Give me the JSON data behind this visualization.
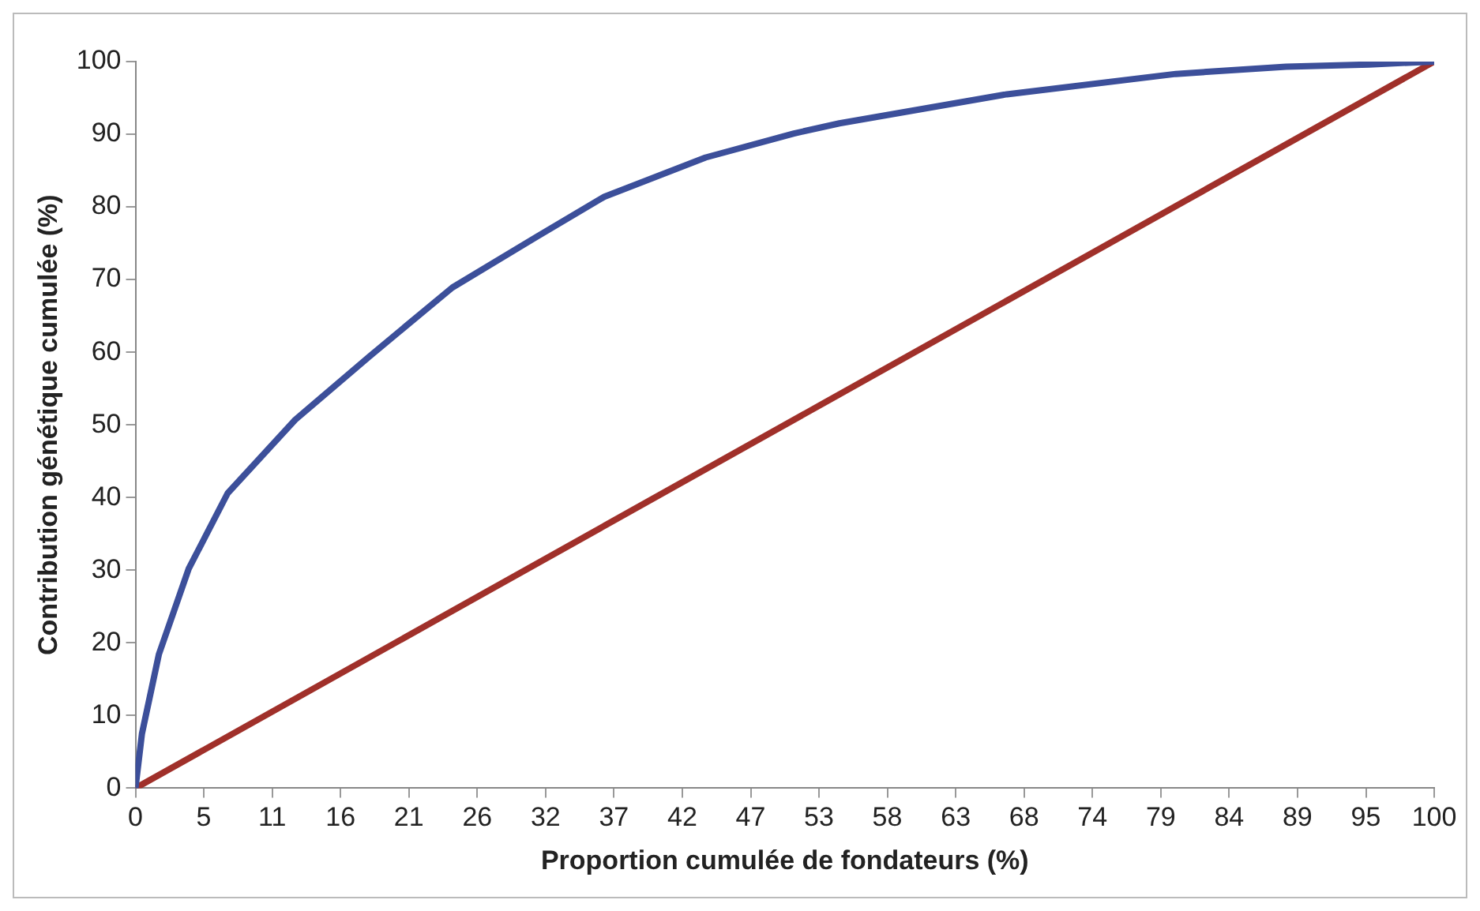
{
  "chart_data": {
    "type": "line",
    "xlabel": "Proportion cumulée de fondateurs (%)",
    "ylabel": "Contribution génétique cumulée (%)",
    "xlim": [
      0,
      100
    ],
    "ylim": [
      0,
      100
    ],
    "xticks": [
      0,
      {
        "value": 5.26,
        "label": "5"
      },
      {
        "value": 10.53,
        "label": "11"
      },
      {
        "value": 15.79,
        "label": "16"
      },
      {
        "value": 21.05,
        "label": "21"
      },
      {
        "value": 26.32,
        "label": "26"
      },
      {
        "value": 31.58,
        "label": "32"
      },
      {
        "value": 36.84,
        "label": "37"
      },
      {
        "value": 42.11,
        "label": "42"
      },
      {
        "value": 47.37,
        "label": "47"
      },
      {
        "value": 52.63,
        "label": "53"
      },
      {
        "value": 57.89,
        "label": "58"
      },
      {
        "value": 63.16,
        "label": "63"
      },
      {
        "value": 68.42,
        "label": "68"
      },
      {
        "value": 73.68,
        "label": "74"
      },
      {
        "value": 78.95,
        "label": "79"
      },
      {
        "value": 84.21,
        "label": "84"
      },
      {
        "value": 89.47,
        "label": "89"
      },
      {
        "value": 94.74,
        "label": "95"
      },
      100
    ],
    "yticks": [
      0,
      10,
      20,
      30,
      40,
      50,
      60,
      70,
      80,
      90,
      100
    ],
    "grid": false,
    "legend": false,
    "marker": "none",
    "line_style": "solid",
    "series": [
      {
        "color": "#3c4f9a",
        "x": [
          0,
          0.5,
          1.8,
          4.1,
          7.1,
          12.3,
          18,
          24.4,
          30.9,
          36.1,
          43.9,
          50.7,
          54.2,
          67.1,
          80.1,
          88.6,
          95,
          100
        ],
        "values": [
          0,
          7.5,
          18.4,
          30.2,
          40.6,
          50.7,
          59.4,
          68.9,
          75.9,
          81.4,
          86.8,
          90.1,
          91.5,
          95.5,
          98.3,
          99.3,
          99.6,
          100
        ]
      },
      {
        "color": "#a0302a",
        "x": [
          0,
          100
        ],
        "values": [
          0,
          100
        ]
      }
    ]
  }
}
